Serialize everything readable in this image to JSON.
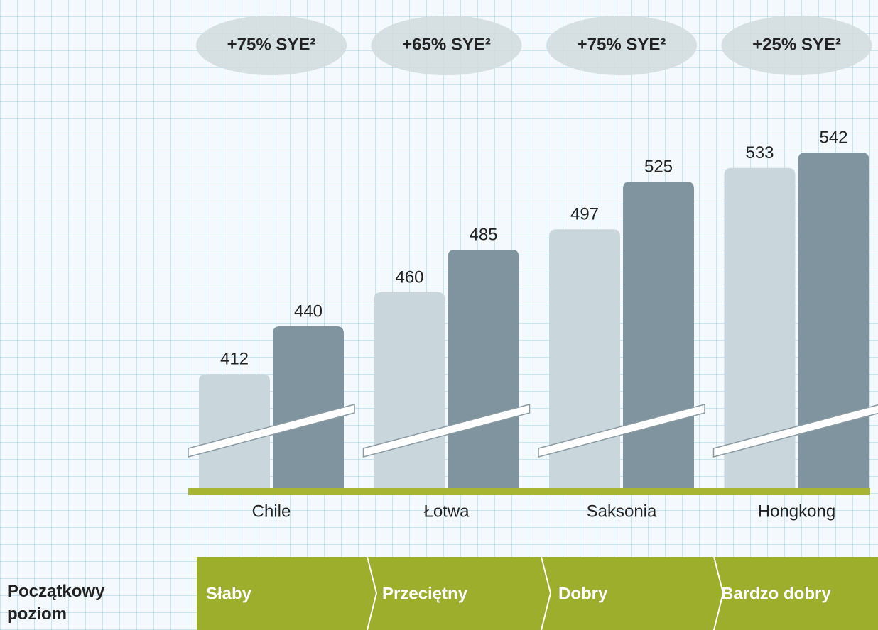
{
  "chart_data": {
    "type": "bar",
    "categories": [
      "Chile",
      "Łotwa",
      "Saksonia",
      "Hongkong"
    ],
    "series": [
      {
        "color": "#c9d6dc",
        "values": [
          412,
          460,
          497,
          533
        ]
      },
      {
        "color": "#7f949e",
        "values": [
          440,
          485,
          525,
          542
        ]
      }
    ],
    "ylim": [
      345,
      550
    ],
    "annotations": [
      "+75% SYE²",
      "+65% SYE²",
      "+75% SYE²",
      "+25% SYE²"
    ],
    "stage_label": "Początkowy poziom",
    "stages": [
      "Słaby",
      "Przeciętny",
      "Dobry",
      "Bardzo dobry"
    ]
  }
}
